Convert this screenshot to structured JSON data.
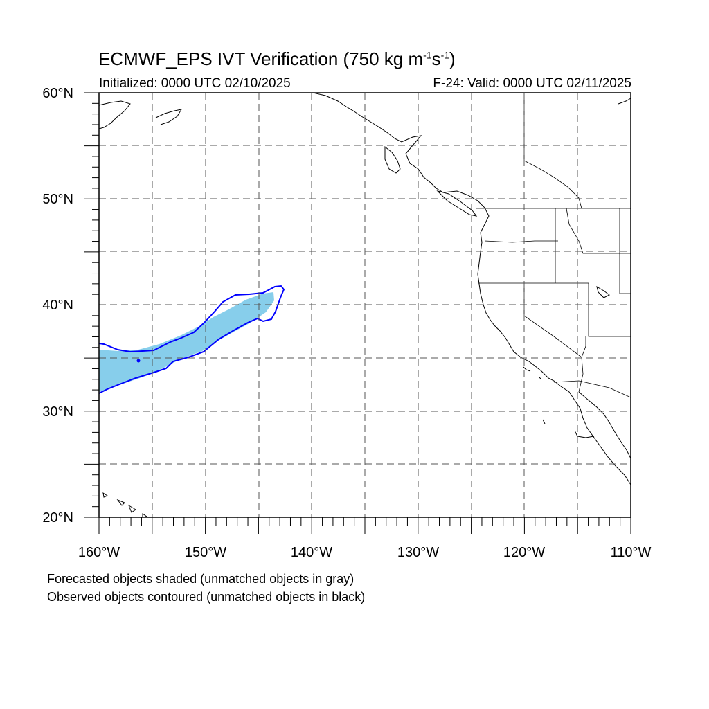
{
  "title": {
    "main": "ECMWF_EPS IVT Verification (750 kg m",
    "sup1": "-1",
    "mid": "s",
    "sup2": "-1",
    "end": ")"
  },
  "subtitle_left": "Initialized: 0000 UTC 02/10/2025",
  "subtitle_right": "F-24: Valid: 0000 UTC 02/11/2025",
  "footnote_1": "Forecasted objects shaded (unmatched objects in gray)",
  "footnote_2": "Observed objects contoured (unmatched objects in black)",
  "map": {
    "lon_range": [
      -160,
      -110
    ],
    "lat_range": [
      20,
      60
    ],
    "lat_labels": [
      "60°N",
      "50°N",
      "40°N",
      "30°N",
      "20°N"
    ],
    "lon_labels": [
      "160°W",
      "150°W",
      "140°W",
      "130°W",
      "120°W",
      "110°W"
    ],
    "forecast_fill_color": "#87ceeb",
    "observed_contour_color": "#0000ff",
    "grid": "dashed"
  }
}
